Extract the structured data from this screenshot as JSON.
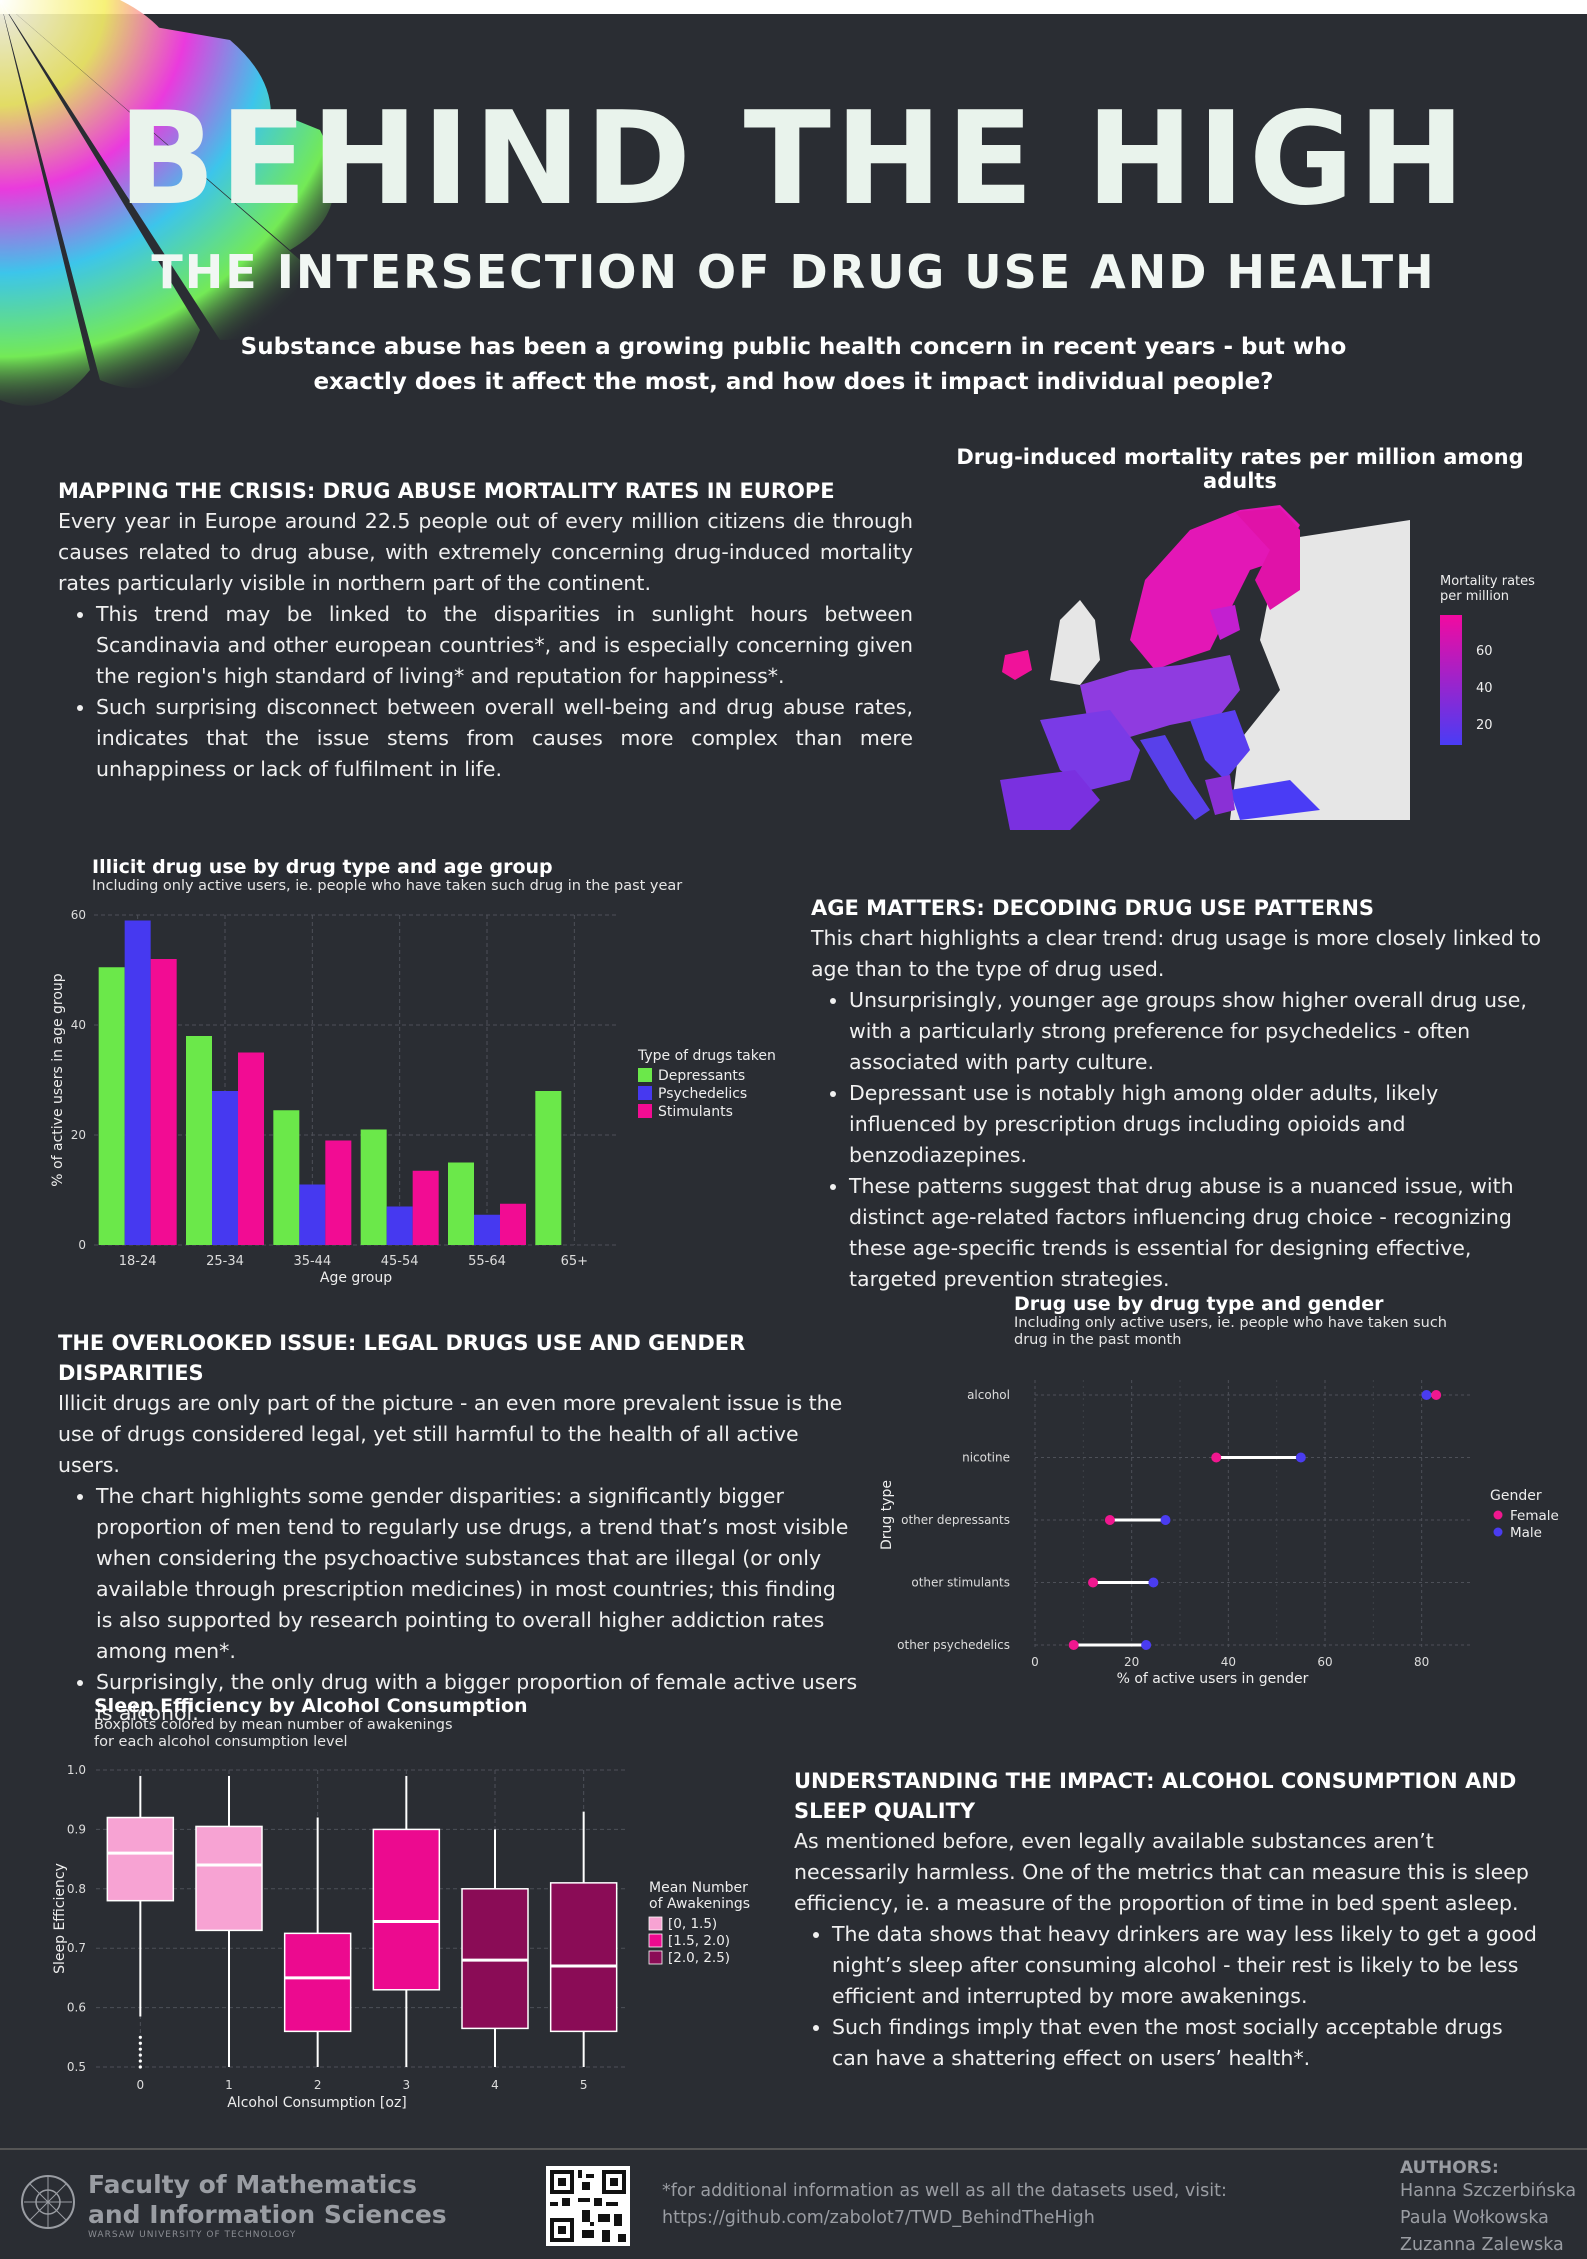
{
  "header": {
    "title": "BEHIND THE HIGH",
    "subtitle": "THE INTERSECTION OF DRUG USE AND HEALTH",
    "intro": "Substance abuse has been a growing public health concern in recent years - but who exactly does it affect the most, and how does it impact individual people?"
  },
  "sections": {
    "mapping": {
      "heading": "MAPPING THE CRISIS: DRUG ABUSE MORTALITY RATES IN EUROPE",
      "paragraph": "Every year in Europe around 22.5 people out of every million citizens die through causes related to drug abuse, with extremely concerning drug-induced mortality rates particularly visible in northern part of the continent.",
      "bullets": [
        "This trend may be linked to the disparities in sunlight hours between Scandinavia and other european countries*, and is especially concerning given the region's high standard of living* and reputation for happiness*.",
        "Such surprising disconnect between overall well-being and drug abuse rates, indicates that the issue stems from causes more complex than mere unhappiness or lack of fulfilment in life."
      ]
    },
    "age": {
      "heading": "AGE MATTERS: DECODING DRUG USE PATTERNS",
      "paragraph": "This chart highlights a clear trend: drug usage is more closely linked to age than to the type of drug used.",
      "bullets": [
        "Unsurprisingly, younger age groups show higher overall drug use, with a particularly strong preference for psychedelics - often associated with party culture.",
        "Depressant use is notably high among older adults, likely influenced by prescription drugs including opioids and benzodiazepines.",
        "These patterns suggest that drug abuse is a nuanced issue, with distinct age-related factors influencing drug choice - recognizing these age-specific trends is essential for designing effective, targeted prevention strategies."
      ]
    },
    "legal": {
      "heading": "THE OVERLOOKED ISSUE: LEGAL DRUGS USE AND GENDER DISPARITIES",
      "paragraph": "Illicit drugs are only part of the picture - an even more prevalent issue is the use of drugs considered legal, yet still harmful to the health of all active users.",
      "bullets": [
        "The chart highlights some gender disparities: a significantly bigger proportion of men tend to regularly use drugs, a trend that’s most visible when considering the psychoactive substances that are illegal (or only available through prescription medicines) in most countries; this finding is also supported by research pointing to overall higher addiction rates among men*.",
        "Surprisingly, the only drug with a bigger proportion of female active users is alcohol."
      ]
    },
    "impact": {
      "heading": "UNDERSTANDING THE IMPACT: ALCOHOL CONSUMPTION AND SLEEP QUALITY",
      "paragraph": "As mentioned before, even legally available substances aren’t necessarily harmless. One of the metrics that can measure this is sleep efficiency, ie. a measure of the proportion of time in bed spent asleep.",
      "bullets": [
        "The data shows that heavy drinkers are way less likely to get a good night’s sleep after consuming alcohol - their rest is likely to be less efficient and interrupted by more awakenings.",
        "Such findings imply that even the most socially acceptable drugs can have a shattering effect on users’ health*."
      ]
    }
  },
  "map": {
    "title": "Drug-induced mortality rates per million among adults",
    "legend_title": "Mortality rates\nper million",
    "legend_ticks": [
      "60",
      "40",
      "20"
    ],
    "colors": {
      "low": "#4a3cf5",
      "high": "#f20aa0",
      "nodata": "#e8e8e8"
    }
  },
  "footer": {
    "faculty_line1": "Faculty of Mathematics",
    "faculty_line2": "and Information Sciences",
    "university": "WARSAW UNIVERSITY OF TECHNOLOGY",
    "note_line1": "*for additional information as well as all the datasets used, visit:",
    "note_line2": "https://github.com/zabolot7/TWD_BehindTheHigh",
    "authors_heading": "AUTHORS:",
    "authors": [
      "Hanna Szczerbińska",
      "Paula Wołkowska",
      "Zuzanna Zalewska"
    ]
  },
  "colors": {
    "background": "#2a2d33",
    "depressants": "#6be84a",
    "psychedelics": "#4639f0",
    "stimulants": "#f20c93",
    "female": "#f0178f",
    "male": "#4a3cf0"
  },
  "chart_data": [
    {
      "type": "bar",
      "title": "Illicit drug use by drug type and age group",
      "subtitle": "Including only active users, ie. people who have taken such drug in the past year",
      "xlabel": "Age group",
      "ylabel": "% of active users in age group",
      "categories": [
        "18-24",
        "25-34",
        "35-44",
        "45-54",
        "55-64",
        "65+"
      ],
      "ylim": [
        0,
        60
      ],
      "yticks": [
        "0",
        "20",
        "40",
        "60"
      ],
      "legend_title": "Type of drugs taken",
      "legend_position": "right",
      "series": [
        {
          "name": "Depressants",
          "values": [
            50.5,
            38,
            24.5,
            21,
            15,
            28
          ]
        },
        {
          "name": "Psychedelics",
          "values": [
            59,
            28,
            11,
            7,
            5.5,
            0
          ]
        },
        {
          "name": "Stimulants",
          "values": [
            52,
            35,
            19,
            13.5,
            7.5,
            0
          ]
        }
      ]
    },
    {
      "type": "scatter",
      "title": "Drug use by drug type and gender",
      "subtitle_line1": "Including only active users, ie. people who have taken such",
      "subtitle_line2": "drug in the past month",
      "xlabel": "% of active users in gender",
      "ylabel": "Drug type",
      "xlim": [
        0,
        90
      ],
      "xticks": [
        "0",
        "20",
        "40",
        "60",
        "80"
      ],
      "categories": [
        "alcohol",
        "nicotine",
        "other depressants",
        "other stimulants",
        "other psychedelics"
      ],
      "legend_title": "Gender",
      "legend_position": "right",
      "series": [
        {
          "name": "Female",
          "values": [
            83,
            37.5,
            15.5,
            12,
            8
          ]
        },
        {
          "name": "Male",
          "values": [
            81,
            55,
            27,
            24.5,
            23
          ]
        }
      ]
    },
    {
      "type": "box",
      "title": "Sleep Efficiency by Alcohol Consumption",
      "subtitle_line1": "Boxplots colored by mean number of awakenings",
      "subtitle_line2": "for each alcohol consumption level",
      "xlabel": "Alcohol Consumption [oz]",
      "ylabel": "Sleep Efficiency",
      "ylim": [
        0.5,
        1.0
      ],
      "yticks": [
        "0.5",
        "0.6",
        "0.7",
        "0.8",
        "0.9",
        "1.0"
      ],
      "legend_title_line1": "Mean Number",
      "legend_title_line2": "of Awakenings",
      "legend_position": "right",
      "legend": [
        {
          "label": "[0, 1.5)",
          "color": "#f7a3d3"
        },
        {
          "label": "[1.5, 2.0)",
          "color": "#ec0a8f"
        },
        {
          "label": "[2.0, 2.5)",
          "color": "#8a0c56"
        }
      ],
      "categories": [
        "0",
        "1",
        "2",
        "3",
        "4",
        "5"
      ],
      "boxes": [
        {
          "min": 0.585,
          "q1": 0.78,
          "median": 0.86,
          "q3": 0.92,
          "max": 0.99,
          "group": 0,
          "outliers": [
            0.5,
            0.51,
            0.52,
            0.53,
            0.54,
            0.55
          ]
        },
        {
          "min": 0.5,
          "q1": 0.73,
          "median": 0.84,
          "q3": 0.905,
          "max": 0.99,
          "group": 0,
          "outliers": []
        },
        {
          "min": 0.5,
          "q1": 0.56,
          "median": 0.65,
          "q3": 0.725,
          "max": 0.92,
          "group": 1,
          "outliers": []
        },
        {
          "min": 0.5,
          "q1": 0.63,
          "median": 0.745,
          "q3": 0.9,
          "max": 0.99,
          "group": 1,
          "outliers": []
        },
        {
          "min": 0.5,
          "q1": 0.565,
          "median": 0.68,
          "q3": 0.8,
          "max": 0.9,
          "group": 2,
          "outliers": []
        },
        {
          "min": 0.5,
          "q1": 0.56,
          "median": 0.67,
          "q3": 0.81,
          "max": 0.93,
          "group": 2,
          "outliers": []
        }
      ]
    }
  ]
}
